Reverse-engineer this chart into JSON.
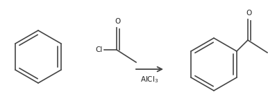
{
  "bg_color": "#ffffff",
  "arrow_color": "#444444",
  "bond_color": "#444444",
  "text_color": "#222222",
  "alcl3_label": "AlCl$_3$",
  "cl_label": "Cl",
  "o_label1": "O",
  "o_label2": "O",
  "fig_width": 3.86,
  "fig_height": 1.59,
  "dpi": 100
}
